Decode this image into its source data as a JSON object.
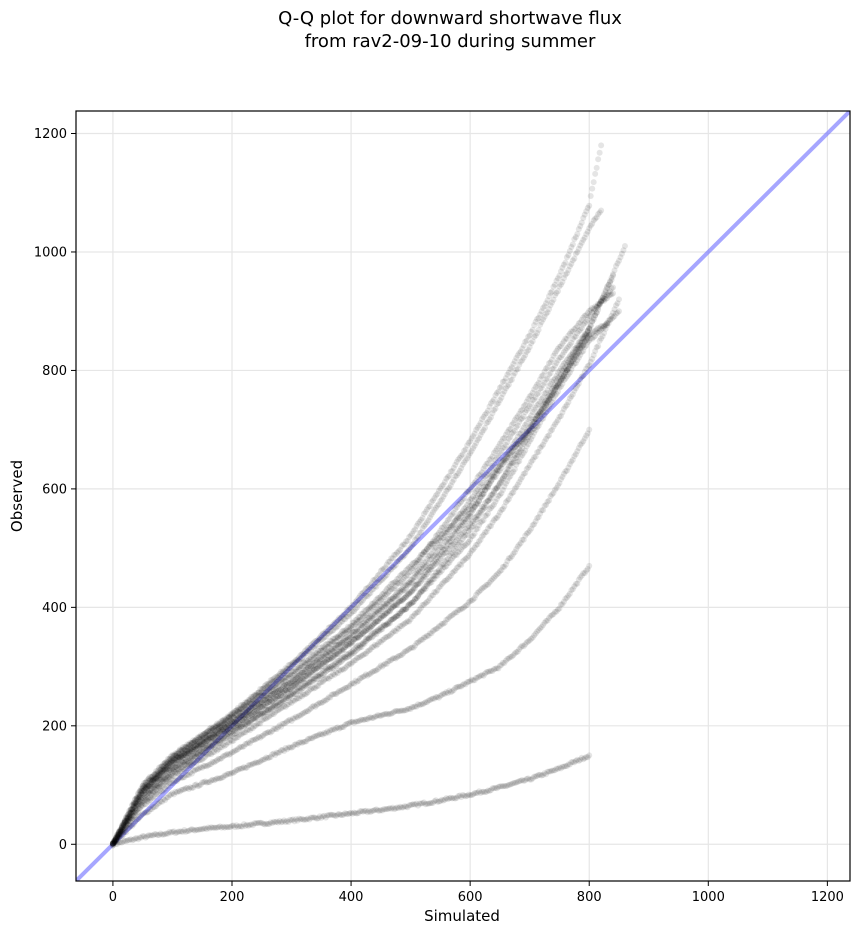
{
  "chart_data": {
    "type": "scatter",
    "title": [
      "Q-Q plot for downward shortwave flux",
      "from rav2-09-10 during summer"
    ],
    "xlabel": "Simulated",
    "ylabel": "Observed",
    "xlim": [
      -62,
      1238
    ],
    "ylim": [
      -62,
      1238
    ],
    "xticks": [
      0,
      200,
      400,
      600,
      800,
      1000,
      1200
    ],
    "yticks": [
      0,
      200,
      400,
      600,
      800,
      1000,
      1200
    ],
    "grid": true,
    "reference_line": {
      "slope": 1,
      "intercept": 0,
      "color": "#7070ff"
    },
    "point_color": "#000000",
    "series": [
      {
        "x": [
          0,
          50,
          100,
          150,
          200,
          250,
          300,
          350,
          400,
          450,
          500,
          550,
          600,
          650,
          700,
          750,
          800
        ],
        "y": [
          0,
          12,
          20,
          26,
          30,
          35,
          40,
          46,
          52,
          58,
          65,
          74,
          84,
          96,
          110,
          128,
          150
        ]
      },
      {
        "x": [
          0,
          50,
          100,
          200,
          300,
          400,
          500,
          550,
          600,
          650,
          700,
          750,
          800
        ],
        "y": [
          0,
          50,
          85,
          120,
          165,
          205,
          230,
          250,
          275,
          300,
          345,
          400,
          470
        ]
      },
      {
        "x": [
          0,
          50,
          100,
          200,
          300,
          400,
          500,
          550,
          600,
          650,
          700,
          750,
          800
        ],
        "y": [
          0,
          65,
          105,
          155,
          210,
          270,
          330,
          370,
          410,
          460,
          530,
          610,
          700
        ]
      },
      {
        "x": [
          0,
          50,
          100,
          200,
          300,
          400,
          500,
          600,
          650,
          700,
          750,
          800,
          850
        ],
        "y": [
          0,
          70,
          115,
          175,
          240,
          305,
          380,
          490,
          560,
          640,
          720,
          810,
          920
        ]
      },
      {
        "x": [
          0,
          50,
          100,
          200,
          300,
          400,
          500,
          600,
          650,
          700,
          750,
          800,
          840
        ],
        "y": [
          0,
          75,
          120,
          185,
          255,
          325,
          405,
          530,
          610,
          700,
          790,
          870,
          960
        ]
      },
      {
        "x": [
          0,
          50,
          100,
          200,
          300,
          400,
          500,
          600,
          650,
          700,
          750,
          800,
          860
        ],
        "y": [
          0,
          82,
          128,
          195,
          265,
          340,
          425,
          555,
          640,
          720,
          800,
          870,
          1010
        ]
      },
      {
        "x": [
          0,
          50,
          100,
          200,
          300,
          400,
          500,
          600,
          650,
          700,
          750,
          800,
          840
        ],
        "y": [
          0,
          88,
          135,
          205,
          275,
          355,
          445,
          580,
          660,
          740,
          820,
          890,
          940
        ]
      },
      {
        "x": [
          0,
          50,
          100,
          200,
          300,
          400,
          500,
          600,
          650,
          700,
          750,
          800,
          840
        ],
        "y": [
          0,
          92,
          140,
          210,
          285,
          365,
          460,
          600,
          675,
          755,
          840,
          900,
          930
        ]
      },
      {
        "x": [
          0,
          50,
          100,
          200,
          300,
          400,
          500,
          600,
          650,
          700,
          750,
          800
        ],
        "y": [
          0,
          95,
          145,
          215,
          290,
          370,
          470,
          570,
          640,
          700,
          780,
          860
        ]
      },
      {
        "x": [
          0,
          50,
          100,
          200,
          300,
          400,
          500,
          600,
          650,
          700,
          750,
          800
        ],
        "y": [
          0,
          90,
          138,
          200,
          265,
          340,
          425,
          540,
          610,
          690,
          780,
          870
        ]
      },
      {
        "x": [
          0,
          50,
          100,
          200,
          300,
          400,
          500,
          600,
          650,
          700,
          750,
          800,
          850
        ],
        "y": [
          0,
          80,
          125,
          190,
          250,
          320,
          405,
          515,
          590,
          680,
          770,
          850,
          900
        ]
      },
      {
        "x": [
          0,
          50,
          100,
          200,
          300,
          400,
          500,
          600,
          650,
          700,
          750,
          800,
          820
        ],
        "y": [
          0,
          98,
          148,
          218,
          300,
          390,
          500,
          660,
          750,
          840,
          940,
          1040,
          1070
        ]
      },
      {
        "x": [
          0,
          50,
          100,
          200,
          300,
          400,
          500,
          600,
          650,
          700,
          750,
          800,
          820
        ],
        "y": [
          0,
          100,
          150,
          220,
          305,
          400,
          520,
          680,
          770,
          860,
          960,
          1080,
          1180
        ]
      },
      {
        "x": [
          0,
          50,
          100,
          200,
          300,
          400,
          500,
          600,
          700,
          750,
          800,
          830
        ],
        "y": [
          0,
          90,
          140,
          205,
          275,
          350,
          440,
          560,
          705,
          780,
          860,
          880
        ]
      }
    ]
  }
}
